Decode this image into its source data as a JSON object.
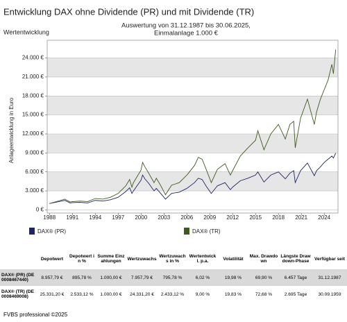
{
  "chart_data": {
    "type": "line",
    "title": "Entwicklung DAX ohne Dividende (PR) und mit Dividende (TR)",
    "section_label": "Wertentwicklung",
    "subtitle": [
      "Auswertung von 31.12.1987 bis 30.06.2025,",
      "Einmalanlage 1.000 €"
    ],
    "y_label": "Anlageentwicklung in Euro",
    "x": [
      1988,
      1989,
      1990,
      1990.7,
      1991,
      1992,
      1993,
      1994,
      1995,
      1996,
      1997,
      1998,
      1998.5,
      1998.8,
      1999,
      2000,
      2000.2,
      2000.5,
      2001,
      2001.7,
      2002,
      2002.5,
      2003.2,
      2004,
      2005,
      2006,
      2007,
      2007.5,
      2008,
      2008.5,
      2009.2,
      2010,
      2011,
      2011.7,
      2012,
      2013,
      2014,
      2015,
      2015.3,
      2016.1,
      2017,
      2018,
      2018.9,
      2019.5,
      2020,
      2020.2,
      2020.9,
      2021.8,
      2022.7,
      2023,
      2023.5,
      2024,
      2024.5,
      2025,
      2025.2,
      2025.5
    ],
    "series": [
      {
        "name": "DAX® (PR)",
        "color": "#1f2566",
        "values": [
          1000,
          1250,
          1500,
          1100,
          1150,
          1200,
          1100,
          1500,
          1400,
          1600,
          2000,
          2900,
          3500,
          2600,
          3000,
          4700,
          5500,
          4900,
          4200,
          3000,
          3400,
          2700,
          1700,
          2600,
          2800,
          3400,
          4300,
          5000,
          4800,
          3800,
          2600,
          3800,
          4300,
          3200,
          3600,
          4600,
          5000,
          5500,
          6000,
          4400,
          5500,
          6000,
          4900,
          5800,
          6200,
          4300,
          6200,
          7400,
          5400,
          6200,
          6800,
          7500,
          8000,
          8500,
          8200,
          8957
        ]
      },
      {
        "name": "DAX® (TR)",
        "color": "#3e5a1e",
        "values": [
          1000,
          1350,
          1700,
          1250,
          1300,
          1400,
          1300,
          1800,
          1700,
          2000,
          2600,
          3800,
          4800,
          3600,
          4300,
          6300,
          7500,
          6800,
          5800,
          4300,
          5000,
          4000,
          2400,
          3900,
          4300,
          5500,
          7000,
          8300,
          8000,
          6500,
          4300,
          6400,
          7300,
          5500,
          6200,
          8500,
          9800,
          11000,
          12500,
          9500,
          12000,
          13500,
          11200,
          13500,
          14000,
          9800,
          14500,
          17500,
          13500,
          15500,
          17500,
          19000,
          20500,
          23000,
          21500,
          25331
        ]
      }
    ],
    "xlim": [
      1987.7,
      2025.8
    ],
    "xticks": [
      1988,
      1991,
      1994,
      1997,
      2000,
      2003,
      2006,
      2009,
      2012,
      2015,
      2018,
      2021,
      2024
    ],
    "ylim": [
      -500,
      26800
    ],
    "yticks": [
      {
        "value": 0,
        "label": "0 €"
      },
      {
        "value": 3000,
        "label": "3.000 €"
      },
      {
        "value": 6000,
        "label": "6.000 €"
      },
      {
        "value": 9000,
        "label": "9.000 €"
      },
      {
        "value": 12000,
        "label": "12.000 €"
      },
      {
        "value": 15000,
        "label": "15.000 €"
      },
      {
        "value": 18000,
        "label": "18.000 €"
      },
      {
        "value": 21000,
        "label": "21.000 €"
      },
      {
        "value": 24000,
        "label": "24.000 €"
      }
    ],
    "grid": true
  },
  "table": {
    "header": [
      "",
      "Depotwert",
      "Depotwert in %",
      "Summe Einzahlungen",
      "Wertzuwachs",
      "Wertzuwachs in %",
      "Wertentwickl. p.a.",
      "Volatilität",
      "Max. Drawdown",
      "Längste Drawdown-Phase",
      "Verfügbar seit"
    ],
    "rows": [
      [
        "DAX® (PR) (DE0008467440)",
        "8.957,79 €",
        "895,78 %",
        "1.000,00 €",
        "7.957,79 €",
        "795,78 %",
        "6,02 %",
        "19,98 %",
        "69,90 %",
        "6.457 Tage",
        "31.12.1987"
      ],
      [
        "DAX® (TR) (DE0008469008)",
        "25.331,20 €",
        "2.533,12 %",
        "1.000,00 €",
        "24.331,20 €",
        "2.433,12 %",
        "9,00 %",
        "19,83 %",
        "72,68 %",
        "2.695 Tage",
        "30.09.1959"
      ]
    ]
  },
  "footer": "FVBS professional ©2025"
}
